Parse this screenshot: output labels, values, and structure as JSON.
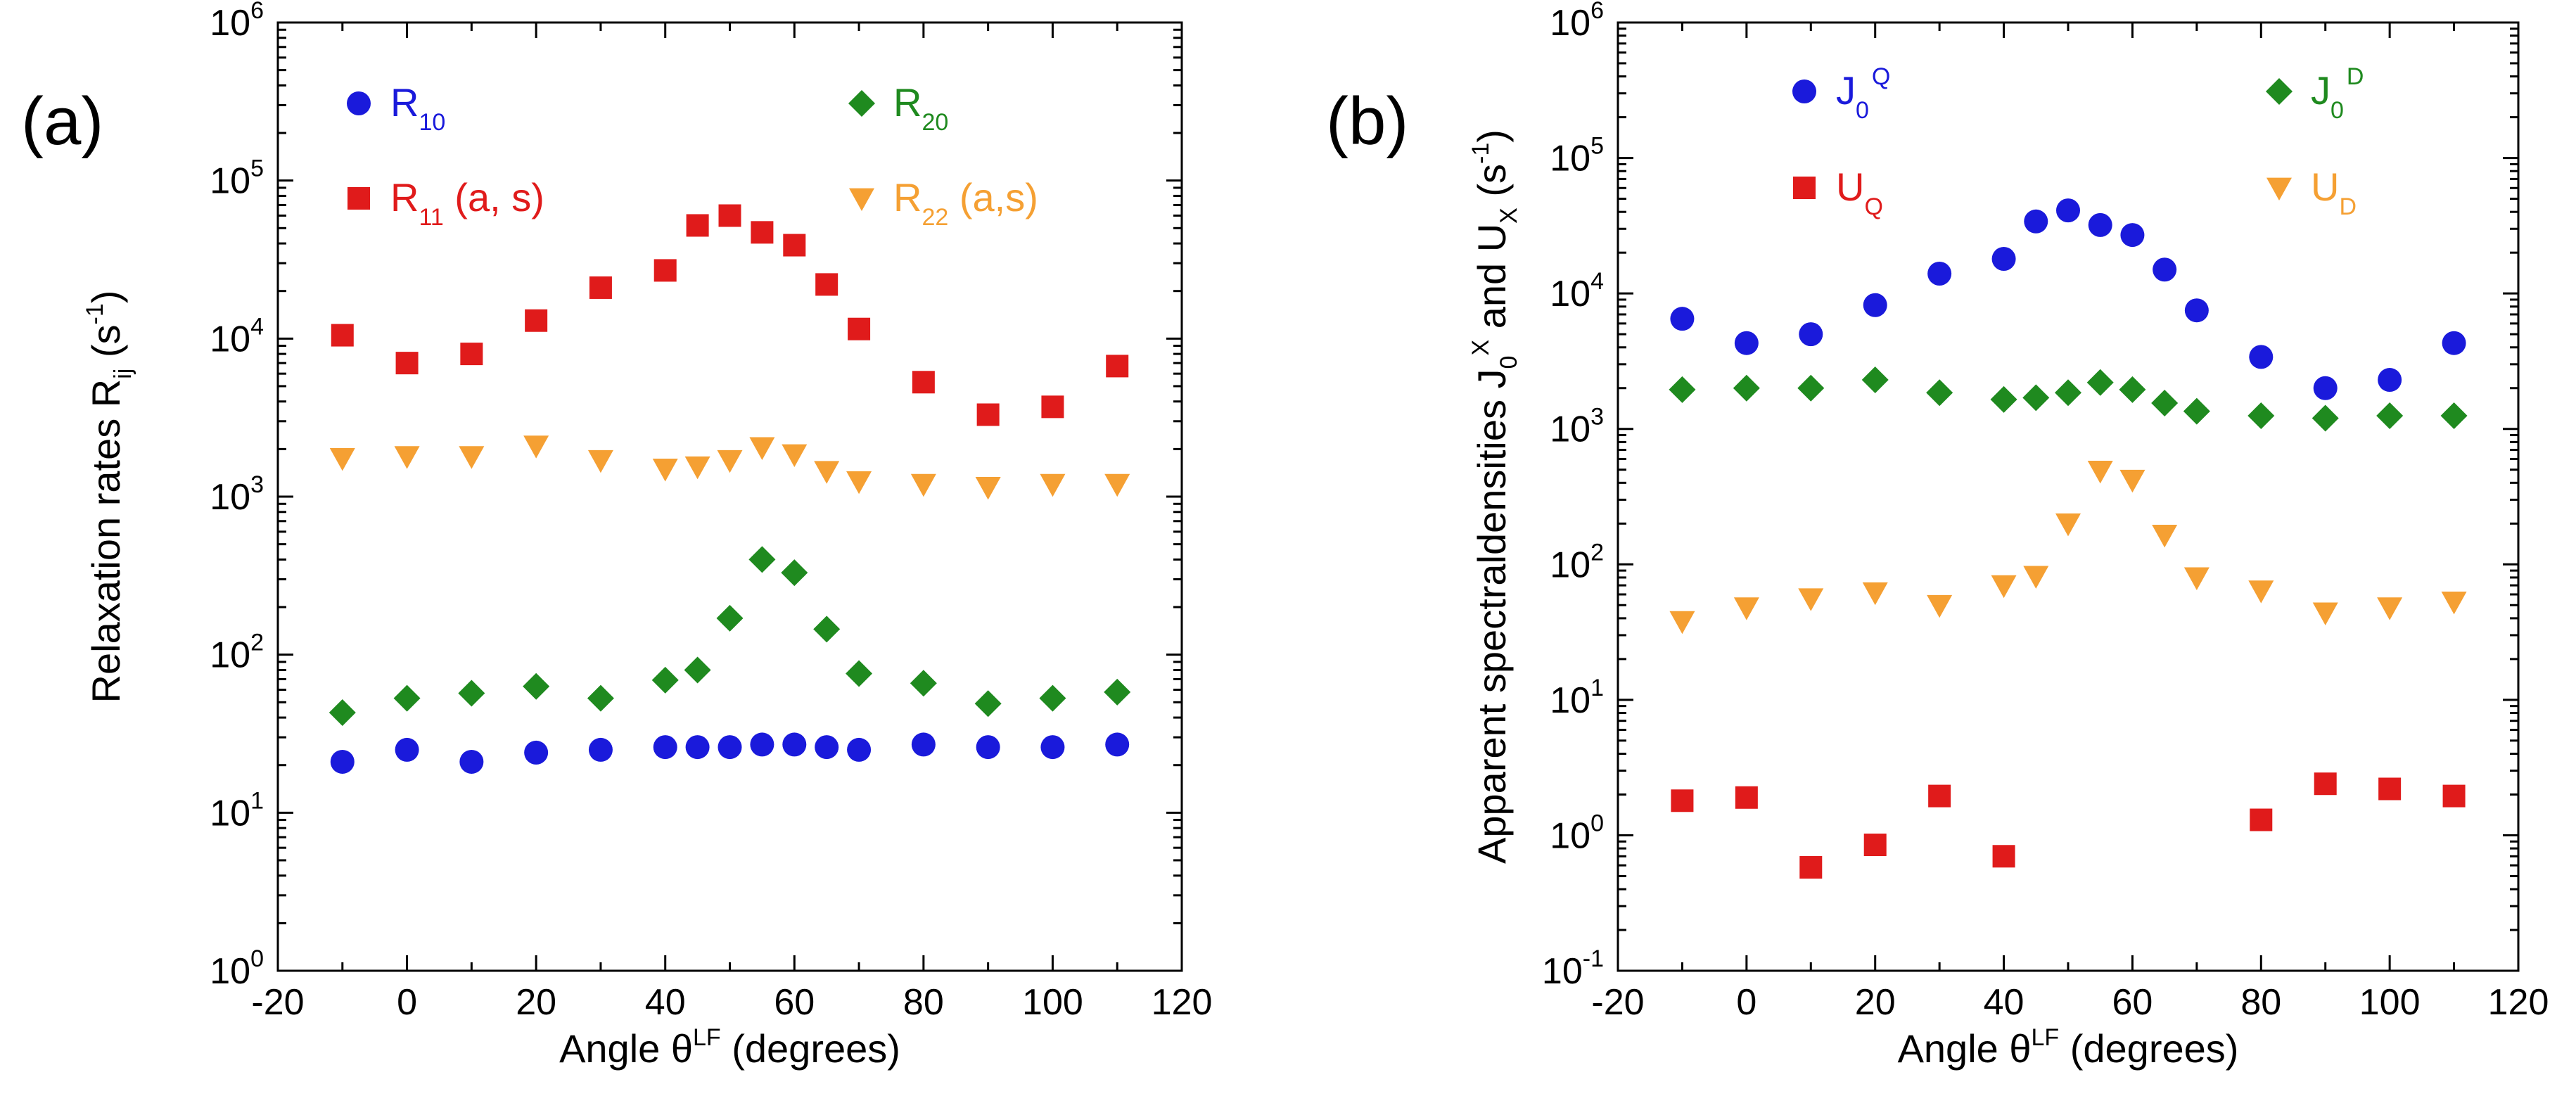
{
  "chart_data": [
    {
      "type": "scatter",
      "panel_label": "(a)",
      "xlabel": {
        "main": "Angle  θ",
        "sup": "LF",
        "tail": "  (degrees)"
      },
      "ylabel": {
        "main": "Relaxation rates  R",
        "sub": "ij",
        "tail": "  (s",
        "sup": "-1",
        "end": ")"
      },
      "xlim": [
        -20,
        120
      ],
      "ylim": [
        1,
        1000000
      ],
      "yscale": "log",
      "x_ticks": [
        "-20",
        "0",
        "20",
        "40",
        "60",
        "80",
        "100",
        "120"
      ],
      "y_ticks": [
        {
          "base": "10",
          "exp": "0"
        },
        {
          "base": "10",
          "exp": "1"
        },
        {
          "base": "10",
          "exp": "2"
        },
        {
          "base": "10",
          "exp": "3"
        },
        {
          "base": "10",
          "exp": "4"
        },
        {
          "base": "10",
          "exp": "5"
        },
        {
          "base": "10",
          "exp": "6"
        }
      ],
      "legend_position": "top",
      "series": [
        {
          "name": "R10",
          "legend": {
            "main": "R",
            "sub": "10",
            "tail": ""
          },
          "marker": "circle",
          "color": "#1a1adb",
          "x": [
            -10,
            0,
            10,
            20,
            30,
            40,
            45,
            50,
            55,
            60,
            65,
            70,
            80,
            90,
            100,
            110
          ],
          "y": [
            21,
            25,
            21,
            24,
            25,
            26,
            26,
            26,
            27,
            27,
            26,
            25,
            27,
            26,
            26,
            27
          ]
        },
        {
          "name": "R11 (a, s)",
          "legend": {
            "main": "R",
            "sub": "11",
            "tail": " (a, s)"
          },
          "marker": "square",
          "color": "#e01b1b",
          "x": [
            -10,
            0,
            10,
            20,
            30,
            40,
            45,
            50,
            55,
            60,
            65,
            70,
            80,
            90,
            100,
            110
          ],
          "y": [
            10500,
            7000,
            8000,
            13000,
            21000,
            27000,
            52000,
            60000,
            47000,
            39000,
            22000,
            11500,
            5300,
            3300,
            3700,
            6700
          ]
        },
        {
          "name": "R20",
          "legend": {
            "main": "R",
            "sub": "20",
            "tail": ""
          },
          "marker": "diamond",
          "color": "#1f8a1f",
          "x": [
            -10,
            0,
            10,
            20,
            30,
            40,
            45,
            50,
            55,
            60,
            65,
            70,
            80,
            90,
            100,
            110
          ],
          "y": [
            43,
            53,
            57,
            63,
            53,
            69,
            80,
            170,
            400,
            330,
            145,
            76,
            66,
            49,
            53,
            58
          ]
        },
        {
          "name": "R22 (a,s)",
          "legend": {
            "main": "R",
            "sub": "22",
            "tail": " (a,s)"
          },
          "marker": "triangle-down",
          "color": "#f5a033",
          "x": [
            -10,
            0,
            10,
            20,
            30,
            40,
            45,
            50,
            55,
            60,
            65,
            70,
            80,
            90,
            100,
            110
          ],
          "y": [
            1750,
            1800,
            1800,
            2100,
            1700,
            1500,
            1550,
            1700,
            2050,
            1850,
            1450,
            1250,
            1200,
            1150,
            1200,
            1200
          ]
        }
      ]
    },
    {
      "type": "scatter",
      "panel_label": "(b)",
      "xlabel": {
        "main": "Angle  θ",
        "sup": "LF",
        "tail": "  (degrees)"
      },
      "ylabel": {
        "main": "Apparent spectraldensities  J",
        "sub": "0",
        "sup": "X",
        "mid": " and U",
        "sub2": "X",
        "tail": "  (s",
        "sup2": "-1",
        "end": ")"
      },
      "xlim": [
        -20,
        120
      ],
      "ylim": [
        0.1,
        1000000
      ],
      "yscale": "log",
      "x_ticks": [
        "-20",
        "0",
        "20",
        "40",
        "60",
        "80",
        "100",
        "120"
      ],
      "y_ticks": [
        {
          "base": "10",
          "exp": "-1"
        },
        {
          "base": "10",
          "exp": "0"
        },
        {
          "base": "10",
          "exp": "1"
        },
        {
          "base": "10",
          "exp": "2"
        },
        {
          "base": "10",
          "exp": "3"
        },
        {
          "base": "10",
          "exp": "4"
        },
        {
          "base": "10",
          "exp": "5"
        },
        {
          "base": "10",
          "exp": "6"
        }
      ],
      "legend_position": "top",
      "series": [
        {
          "name": "J0Q",
          "legend": {
            "main": "J",
            "sub": "0",
            "sup": "Q"
          },
          "marker": "circle",
          "color": "#1a1adb",
          "x": [
            -10,
            0,
            10,
            20,
            30,
            40,
            45,
            50,
            55,
            60,
            65,
            70,
            80,
            90,
            100,
            110
          ],
          "y": [
            6500,
            4300,
            5000,
            8200,
            14000,
            18000,
            34000,
            41000,
            32000,
            27000,
            15000,
            7500,
            3400,
            2000,
            2300,
            4300
          ]
        },
        {
          "name": "UQ",
          "legend": {
            "main": "U",
            "sub": "Q"
          },
          "marker": "square",
          "color": "#e01b1b",
          "x": [
            -10,
            0,
            10,
            20,
            30,
            40,
            80,
            90,
            100,
            110
          ],
          "y": [
            1.8,
            1.9,
            0.58,
            0.85,
            1.95,
            0.7,
            1.3,
            2.4,
            2.2,
            1.95
          ]
        },
        {
          "name": "J0D",
          "legend": {
            "main": "J",
            "sub": "0",
            "sup": "D"
          },
          "marker": "diamond",
          "color": "#1f8a1f",
          "x": [
            -10,
            0,
            10,
            20,
            30,
            40,
            45,
            50,
            55,
            60,
            65,
            70,
            80,
            90,
            100,
            110
          ],
          "y": [
            1950,
            2000,
            2000,
            2300,
            1850,
            1650,
            1700,
            1850,
            2200,
            1950,
            1550,
            1350,
            1250,
            1200,
            1250,
            1250
          ]
        },
        {
          "name": "UD",
          "legend": {
            "main": "U",
            "sub": "D"
          },
          "marker": "triangle-down",
          "color": "#f5a033",
          "x": [
            -10,
            0,
            10,
            20,
            30,
            40,
            45,
            50,
            55,
            60,
            65,
            70,
            80,
            90,
            100,
            110
          ],
          "y": [
            38,
            48,
            56,
            62,
            50,
            70,
            82,
            200,
            490,
            420,
            165,
            80,
            64,
            44,
            48,
            53
          ]
        }
      ]
    }
  ]
}
